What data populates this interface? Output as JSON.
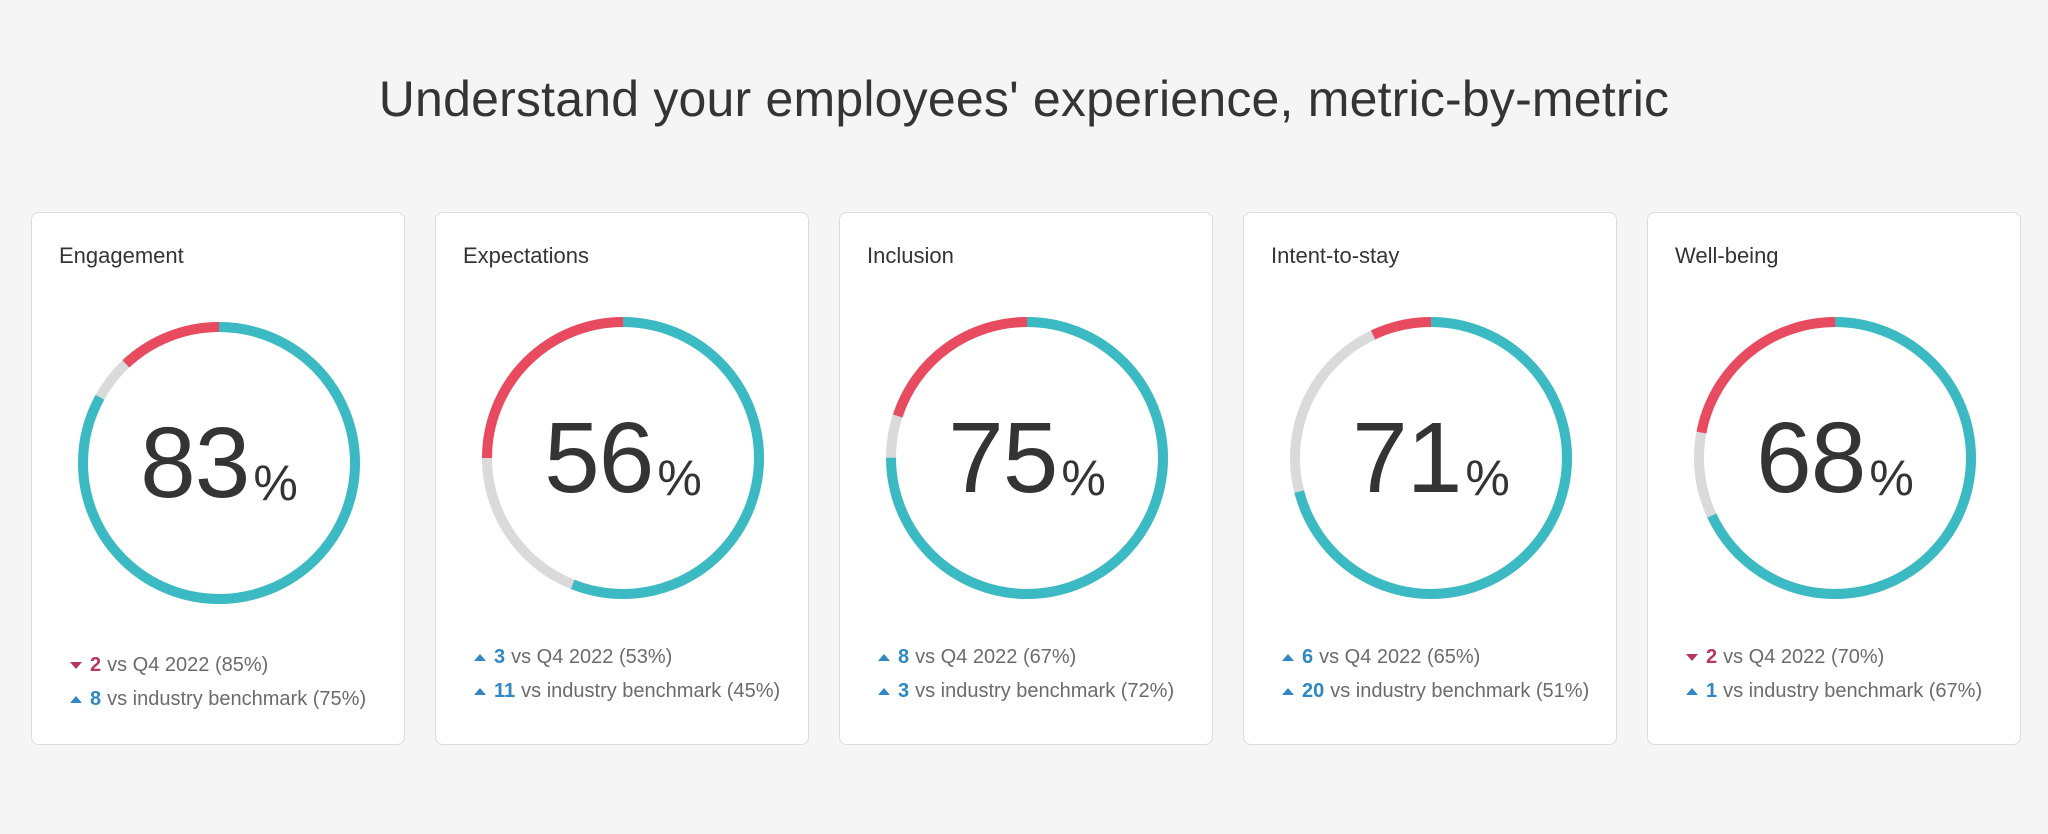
{
  "headline": "Understand your employees' experience, metric-by-metric",
  "colors": {
    "favorable": "#3cbac3",
    "neutral": "#dadada",
    "unfavorable": "#e84a5f",
    "up": "#2f88c4",
    "down": "#b6365e"
  },
  "cards": [
    {
      "title": "Engagement",
      "score": "83",
      "percent_sign": "%",
      "favorable": 0.83,
      "neutral": 0.05,
      "unfavorable": 0.12,
      "comparisons": [
        {
          "direction": "down",
          "delta": "2",
          "text": "vs Q4 2022 (85%)"
        },
        {
          "direction": "up",
          "delta": "8",
          "text": "vs industry benchmark (75%)"
        }
      ]
    },
    {
      "title": "Expectations",
      "score": "56",
      "percent_sign": "%",
      "favorable": 0.56,
      "neutral": 0.19,
      "unfavorable": 0.25,
      "comparisons": [
        {
          "direction": "up",
          "delta": "3",
          "text": "vs Q4 2022 (53%)"
        },
        {
          "direction": "up",
          "delta": "11",
          "text": "vs industry benchmark (45%)"
        }
      ]
    },
    {
      "title": "Inclusion",
      "score": "75",
      "percent_sign": "%",
      "favorable": 0.75,
      "neutral": 0.05,
      "unfavorable": 0.2,
      "comparisons": [
        {
          "direction": "up",
          "delta": "8",
          "text": "vs Q4 2022 (67%)"
        },
        {
          "direction": "up",
          "delta": "3",
          "text": "vs industry benchmark (72%)"
        }
      ]
    },
    {
      "title": "Intent-to-stay",
      "score": "71",
      "percent_sign": "%",
      "favorable": 0.71,
      "neutral": 0.22,
      "unfavorable": 0.07,
      "comparisons": [
        {
          "direction": "up",
          "delta": "6",
          "text": "vs Q4 2022 (65%)"
        },
        {
          "direction": "up",
          "delta": "20",
          "text": "vs industry benchmark (51%)"
        }
      ]
    },
    {
      "title": "Well-being",
      "score": "68",
      "percent_sign": "%",
      "favorable": 0.68,
      "neutral": 0.1,
      "unfavorable": 0.22,
      "comparisons": [
        {
          "direction": "down",
          "delta": "2",
          "text": "vs Q4 2022 (70%)"
        },
        {
          "direction": "up",
          "delta": "1",
          "text": "vs industry benchmark (67%)"
        }
      ]
    }
  ]
}
